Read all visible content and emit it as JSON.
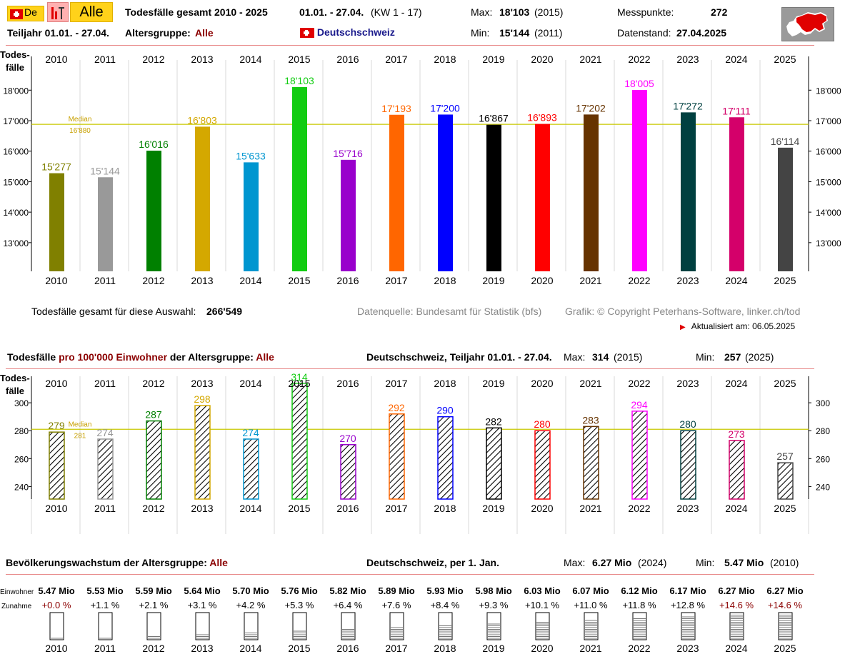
{
  "header": {
    "lang_label": "De",
    "alle_button": "Alle",
    "title": "Todesfälle gesamt 2010 - 2025",
    "period": "01.01. - 27.04.",
    "kw": "(KW 1 - 17)",
    "max_label": "Max:",
    "max_value": "18'103",
    "max_year": "(2015)",
    "min_label": "Min:",
    "min_value": "15'144",
    "min_year": "(2011)",
    "messpunkte_label": "Messpunkte:",
    "messpunkte_value": "272",
    "teiljahr": "Teiljahr 01.01. - 27.04.",
    "altersgruppe_label": "Altersgruppe:",
    "altersgruppe_value": "Alle",
    "region": "Deutschschweiz",
    "datenstand_label": "Datenstand:",
    "datenstand_value": "27.04.2025"
  },
  "colors": [
    "#808000",
    "#999999",
    "#008000",
    "#d4a800",
    "#0096d0",
    "#11cc11",
    "#9900cc",
    "#ff6600",
    "#0000ff",
    "#000000",
    "#ff0000",
    "#663300",
    "#ff00ff",
    "#004040",
    "#d4006a",
    "#444444"
  ],
  "chart_data": [
    {
      "type": "bar",
      "ylabel_line1": "Todes-",
      "ylabel_line2": "fälle",
      "categories": [
        "2010",
        "2011",
        "2012",
        "2013",
        "2014",
        "2015",
        "2016",
        "2017",
        "2018",
        "2019",
        "2020",
        "2021",
        "2022",
        "2023",
        "2024",
        "2025"
      ],
      "values": [
        15277,
        15144,
        16016,
        16803,
        15633,
        18103,
        15716,
        17193,
        17200,
        16867,
        16893,
        17202,
        18005,
        17272,
        17111,
        16114
      ],
      "value_labels": [
        "15'277",
        "15'144",
        "16'016",
        "16'803",
        "15'633",
        "18'103",
        "15'716",
        "17'193",
        "17'200",
        "16'867",
        "16'893",
        "17'202",
        "18'005",
        "17'272",
        "17'111",
        "16'114"
      ],
      "yticks": [
        13000,
        14000,
        15000,
        16000,
        17000,
        18000
      ],
      "ytick_labels": [
        "13'000",
        "14'000",
        "15'000",
        "16'000",
        "17'000",
        "18'000"
      ],
      "median_label": "Median",
      "median_value_label": "16'880",
      "median": 16880,
      "ylim": [
        12060,
        18990
      ]
    },
    {
      "type": "bar",
      "title_part1": "Todesfälle",
      "title_part2": "pro 100'000 Einwohner",
      "title_part3": "der Altersgruppe:",
      "title_alle": "Alle",
      "subtitle": "Deutschschweiz, Teiljahr 01.01. - 27.04.",
      "max_label": "Max:",
      "max_value": "314",
      "max_year": "(2015)",
      "min_label": "Min:",
      "min_value": "257",
      "min_year": "(2025)",
      "ylabel_line1": "Todes-",
      "ylabel_line2": "fälle",
      "categories": [
        "2010",
        "2011",
        "2012",
        "2013",
        "2014",
        "2015",
        "2016",
        "2017",
        "2018",
        "2019",
        "2020",
        "2021",
        "2022",
        "2023",
        "2024",
        "2025"
      ],
      "values": [
        279,
        274,
        287,
        298,
        274,
        314,
        270,
        292,
        290,
        282,
        280,
        283,
        294,
        280,
        273,
        257
      ],
      "value_labels": [
        "279",
        "274",
        "287",
        "298",
        "274",
        "314",
        "270",
        "292",
        "290",
        "282",
        "280",
        "283",
        "294",
        "280",
        "273",
        "257"
      ],
      "yticks": [
        240,
        260,
        280,
        300
      ],
      "ytick_labels": [
        "240",
        "260",
        "280",
        "300"
      ],
      "median_label": "Median",
      "median_value_label": "281",
      "median": 281,
      "ylim": [
        231,
        319
      ]
    },
    {
      "type": "bar",
      "title_part1": "Bevölkerungswachstum der Altersgruppe:",
      "title_alle": "Alle",
      "subtitle": "Deutschschweiz, per 1. Jan.",
      "max_label": "Max:",
      "max_value": "6.27 Mio",
      "max_year": "(2024)",
      "min_label": "Min:",
      "min_value": "5.47 Mio",
      "min_year": "(2010)",
      "row1_label": "Einwohner",
      "row2_label": "Zunahme",
      "categories": [
        "2010",
        "2011",
        "2012",
        "2013",
        "2014",
        "2015",
        "2016",
        "2017",
        "2018",
        "2019",
        "2020",
        "2021",
        "2022",
        "2023",
        "2024",
        "2025"
      ],
      "population_labels": [
        "5.47 Mio",
        "5.53 Mio",
        "5.59 Mio",
        "5.64 Mio",
        "5.70 Mio",
        "5.76 Mio",
        "5.82 Mio",
        "5.89 Mio",
        "5.93 Mio",
        "5.98 Mio",
        "6.03 Mio",
        "6.07 Mio",
        "6.12 Mio",
        "6.17 Mio",
        "6.27 Mio",
        "6.27 Mio"
      ],
      "growth_labels": [
        "+0.0 %",
        "+1.1 %",
        "+2.1 %",
        "+3.1 %",
        "+4.2 %",
        "+5.3 %",
        "+6.4 %",
        "+7.6 %",
        "+8.4 %",
        "+9.3 %",
        "+10.1 %",
        "+11.0 %",
        "+11.8 %",
        "+12.8 %",
        "+14.6 %",
        "+14.6 %"
      ],
      "growth_percent": [
        0.0,
        1.1,
        2.1,
        3.1,
        4.2,
        5.3,
        6.4,
        7.6,
        8.4,
        9.3,
        10.1,
        11.0,
        11.8,
        12.8,
        14.6,
        14.6
      ]
    }
  ],
  "footer": {
    "total_label": "Todesfälle gesamt für diese Auswahl:",
    "total_value": "266'549",
    "source": "Datenquelle: Bundesamt für Statistik (bfs)",
    "copyright": "Grafik: © Copyright Peterhans-Software, linker.ch/tod",
    "updated": "Aktualisiert am: 06.05.2025"
  }
}
